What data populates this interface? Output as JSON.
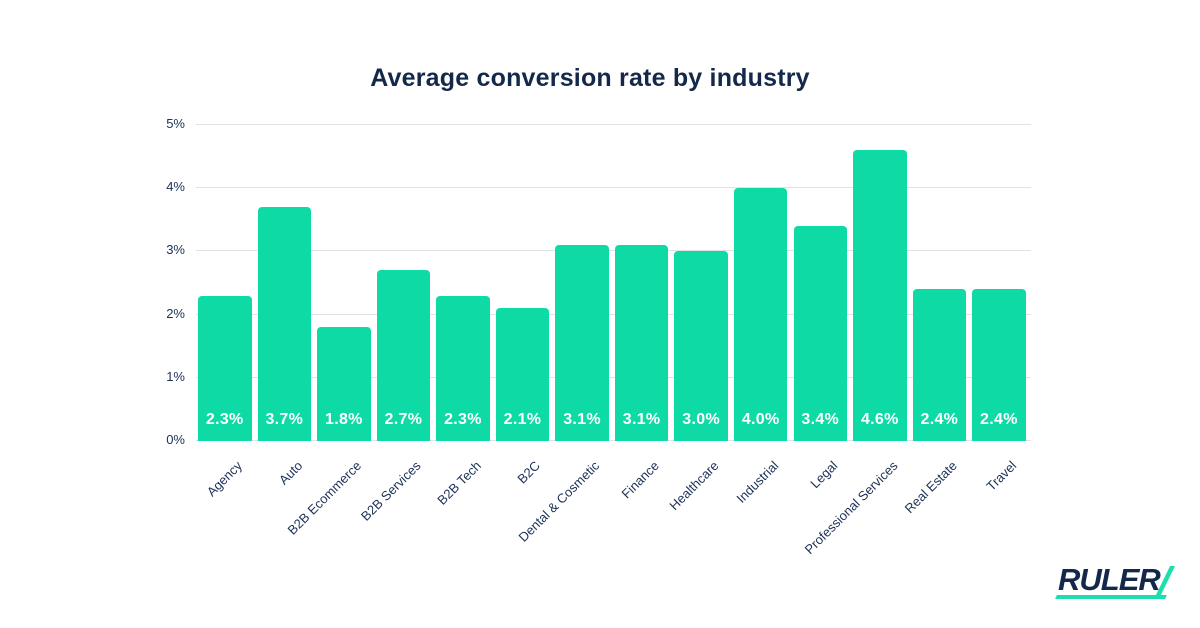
{
  "page": {
    "background_color": "#FFFFFF"
  },
  "chart_data": {
    "type": "bar",
    "title": "Average conversion rate by industry",
    "categories": [
      "Agency",
      "Auto",
      "B2B Ecommerce",
      "B2B Services",
      "B2B Tech",
      "B2C",
      "Dental & Cosmetic",
      "Finance",
      "Healthcare",
      "Industrial",
      "Legal",
      "Professional Services",
      "Real Estate",
      "Travel"
    ],
    "values": [
      2.3,
      3.7,
      1.8,
      2.7,
      2.3,
      2.1,
      3.1,
      3.1,
      3.0,
      4.0,
      3.4,
      4.6,
      2.4,
      2.4
    ],
    "value_labels": [
      "2.3%",
      "3.7%",
      "1.8%",
      "2.7%",
      "2.3%",
      "2.1%",
      "3.1%",
      "3.1%",
      "3.0%",
      "4.0%",
      "3.4%",
      "4.6%",
      "2.4%",
      "2.4%"
    ],
    "y_ticks": [
      "0%",
      "1%",
      "2%",
      "3%",
      "4%",
      "5%"
    ],
    "ylim": [
      0,
      5
    ],
    "xlabel": "",
    "ylabel": "",
    "grid": true,
    "legend": false,
    "bar_color": "#0DDAA5",
    "gridline_color": "#E2E2E2",
    "title_color": "#14294A",
    "axis_text_color": "#1C3156",
    "bar_value_text_color": "#FFFFFF"
  },
  "logo": {
    "text": "RULER",
    "text_color": "#14294A",
    "accent_color": "#1EDFAC"
  }
}
